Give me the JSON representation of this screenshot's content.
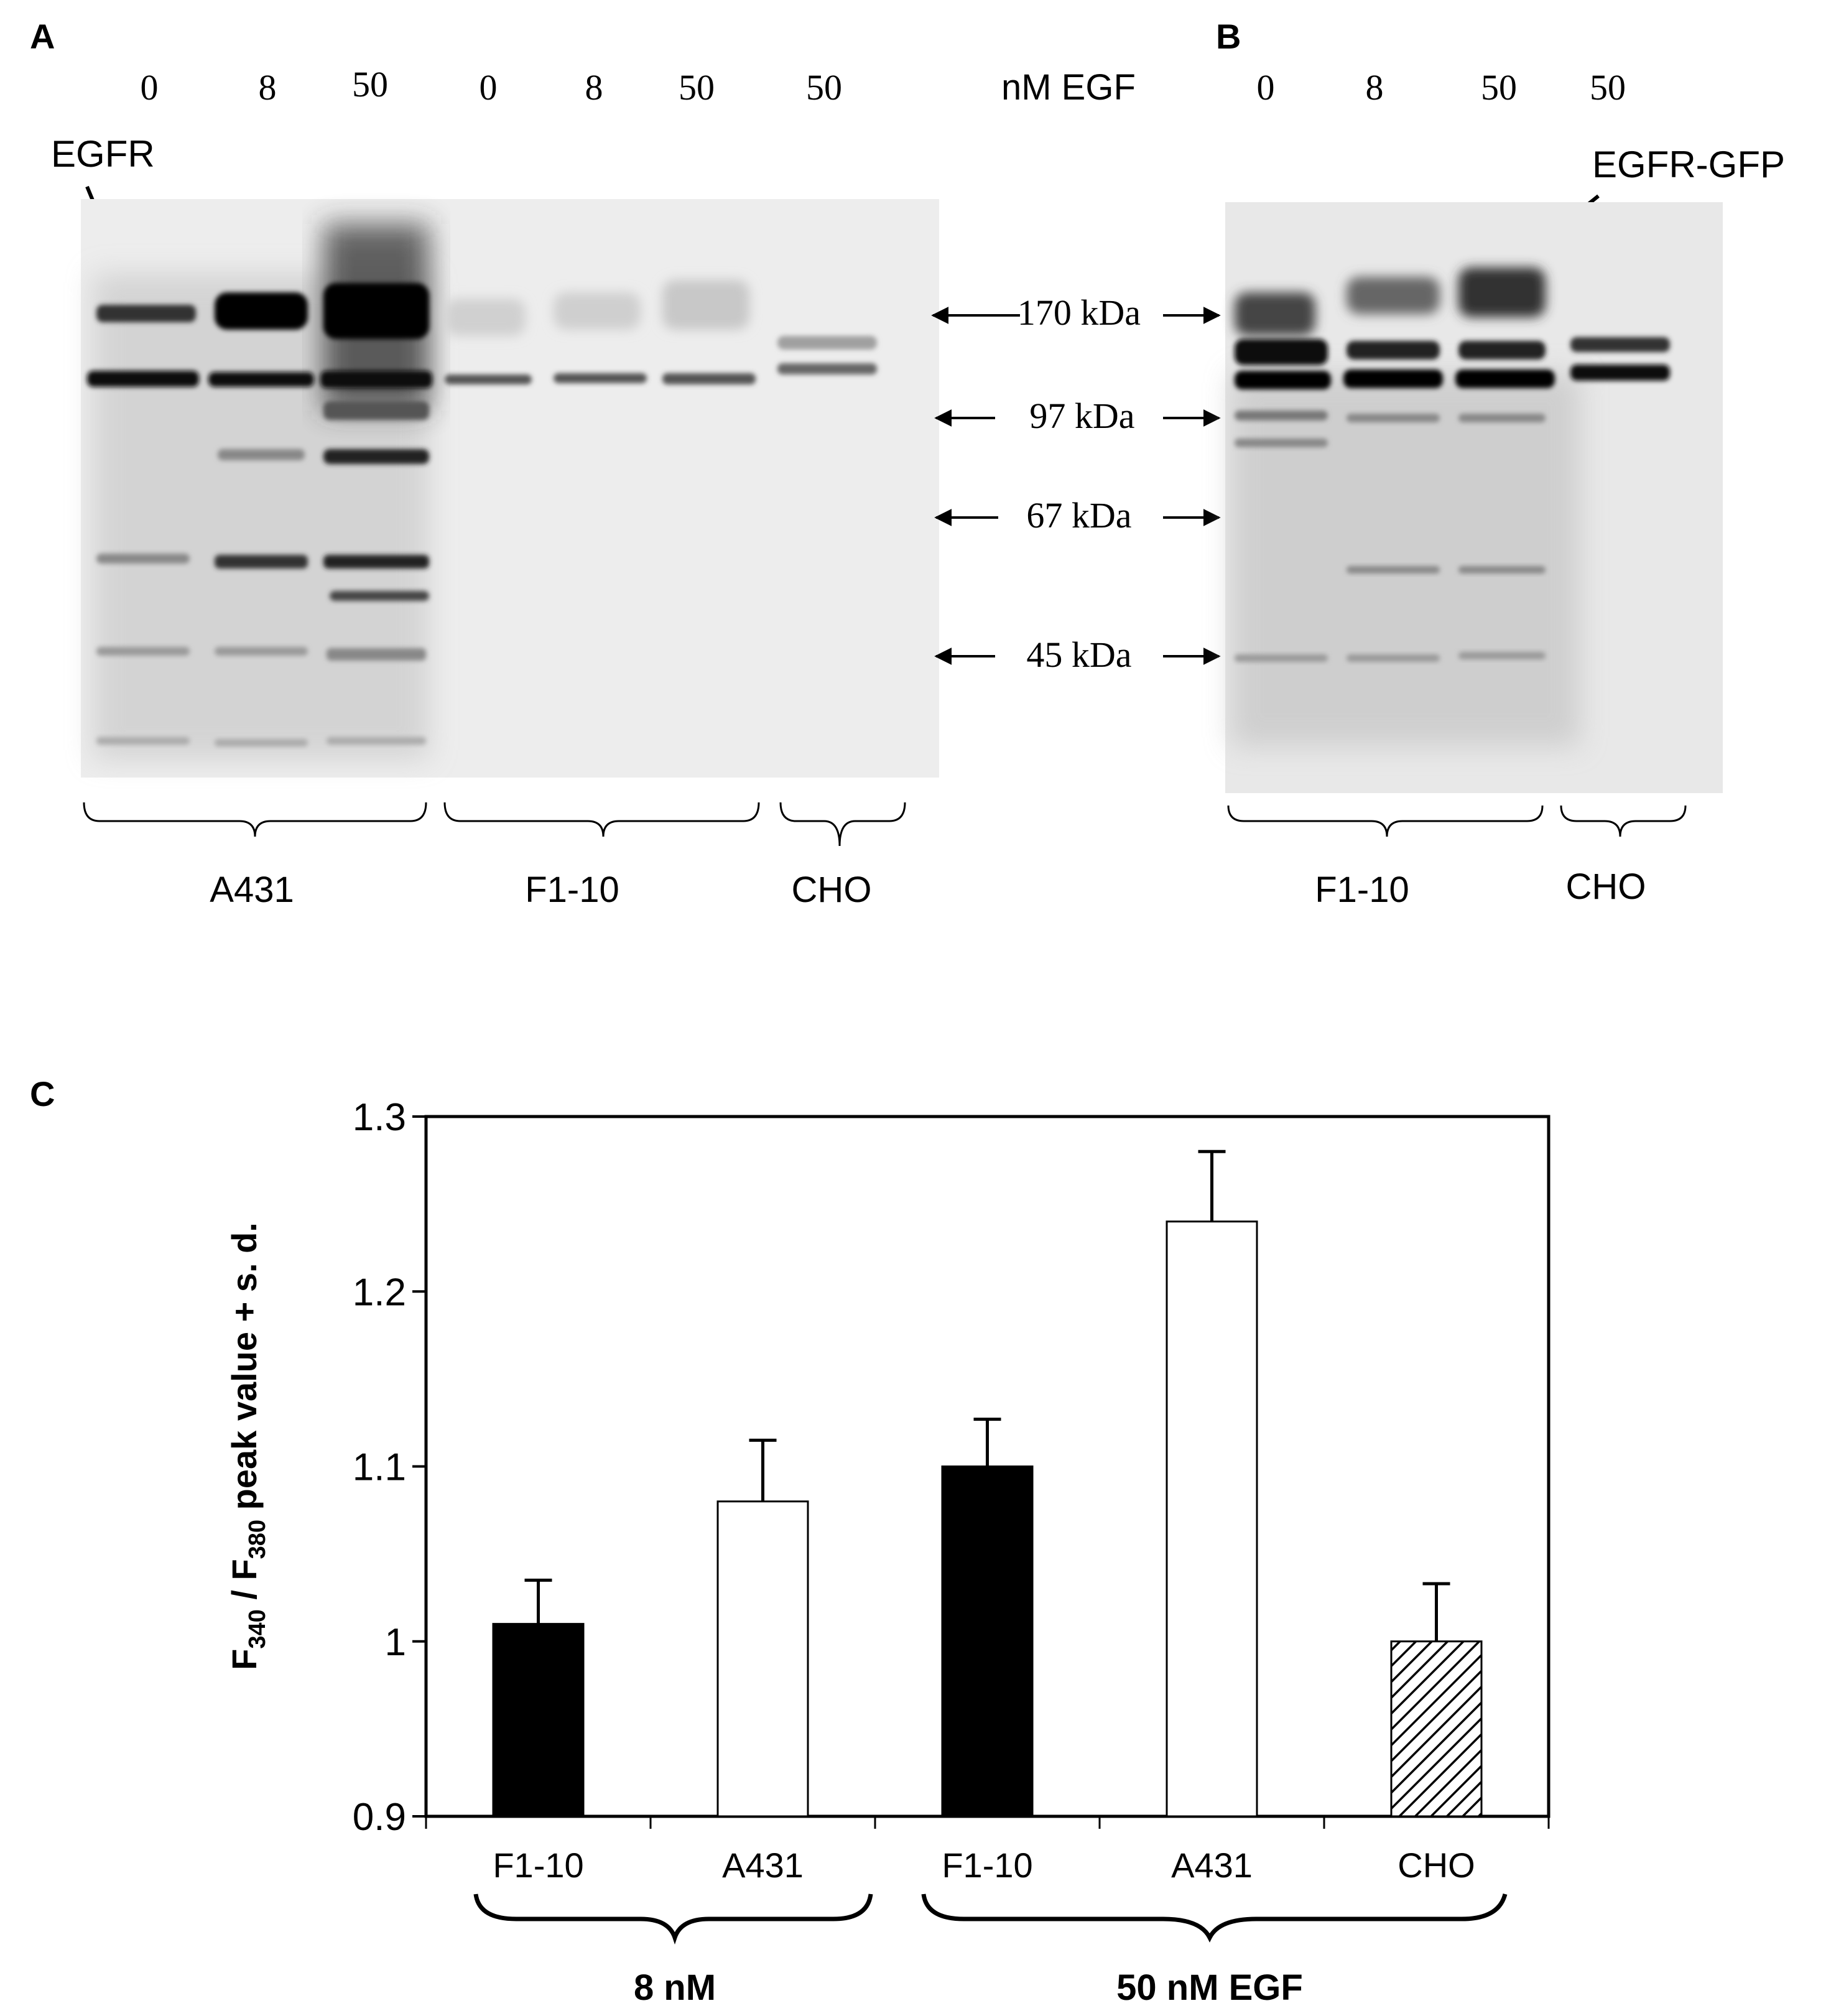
{
  "panel_a": {
    "letter": "A",
    "lane_labels": [
      "0",
      "8",
      "50",
      "0",
      "8",
      "50",
      "50"
    ],
    "egf_unit_label": "nM EGF",
    "egfr_label": "EGFR",
    "groups": [
      "A431",
      "F1-10",
      "CHO"
    ]
  },
  "panel_b": {
    "letter": "B",
    "lane_labels": [
      "0",
      "8",
      "50",
      "50"
    ],
    "egfr_gfp_label": "EGFR-GFP",
    "groups": [
      "F1-10",
      "CHO"
    ]
  },
  "markers": [
    "170 kDa",
    "97 kDa",
    "67 kDa",
    "45 kDa"
  ],
  "panel_c": {
    "letter": "C",
    "group_labels": [
      "8 nM",
      "50 nM EGF"
    ]
  },
  "chart_data": {
    "type": "bar",
    "categories": [
      "F1-10",
      "A431",
      "F1-10",
      "A431",
      "CHO"
    ],
    "values": [
      1.01,
      1.08,
      1.1,
      1.24,
      1.0
    ],
    "error_sd": [
      0.025,
      0.035,
      0.027,
      0.04,
      0.033
    ],
    "fills": [
      "solid-black",
      "white",
      "solid-black",
      "white",
      "hatched"
    ],
    "ylim": [
      0.9,
      1.3
    ],
    "yticks": [
      "0.9",
      "1",
      "1.1",
      "1.2",
      "1.3"
    ],
    "ylabel": {
      "prefix": "F",
      "sub1": "340",
      "mid": " / F",
      "sub2": "380",
      "suffix": "  peak value + s. d."
    },
    "grid": false,
    "legend": "none"
  }
}
